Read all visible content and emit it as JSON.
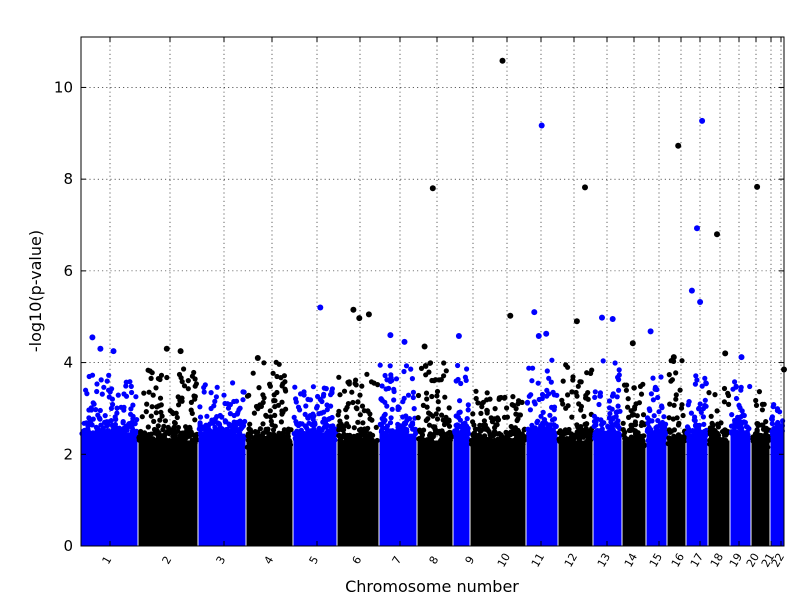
{
  "chart_data": {
    "type": "scatter",
    "title": "",
    "xlabel": "Chromosome number",
    "ylabel": "-log10(p-value)",
    "ylim": [
      0,
      11.1
    ],
    "yticks": [
      0,
      2,
      4,
      6,
      8,
      10
    ],
    "grid": true,
    "legend": "none",
    "colors": {
      "odd": "#0000ff",
      "even": "#000000",
      "background": "#ffffff"
    },
    "chromosomes": [
      {
        "label": "1",
        "color": "blue"
      },
      {
        "label": "2",
        "color": "black"
      },
      {
        "label": "3",
        "color": "blue"
      },
      {
        "label": "4",
        "color": "black"
      },
      {
        "label": "5",
        "color": "blue"
      },
      {
        "label": "6",
        "color": "black"
      },
      {
        "label": "7",
        "color": "blue"
      },
      {
        "label": "8",
        "color": "black"
      },
      {
        "label": "9",
        "color": "blue"
      },
      {
        "label": "10",
        "color": "black"
      },
      {
        "label": "11",
        "color": "blue"
      },
      {
        "label": "12",
        "color": "black"
      },
      {
        "label": "13",
        "color": "blue"
      },
      {
        "label": "14",
        "color": "black"
      },
      {
        "label": "15",
        "color": "blue"
      },
      {
        "label": "16",
        "color": "black"
      },
      {
        "label": "17",
        "color": "blue"
      },
      {
        "label": "18",
        "color": "black"
      },
      {
        "label": "19",
        "color": "blue"
      },
      {
        "label": "20",
        "color": "black"
      },
      {
        "label": "21",
        "color": "blue"
      },
      {
        "label": "22",
        "color": "black"
      }
    ],
    "typical_max_by_chromosome": [
      3.8,
      3.9,
      3.6,
      4.1,
      3.5,
      3.8,
      4.0,
      4.1,
      4.0,
      3.4,
      4.1,
      4.0,
      4.1,
      3.6,
      3.7,
      4.1,
      3.9,
      3.5,
      3.7,
      3.4,
      3.1,
      3.9
    ],
    "top_hits": [
      {
        "chr": "1",
        "y": 4.55
      },
      {
        "chr": "1",
        "y": 4.25
      },
      {
        "chr": "1",
        "y": 4.3
      },
      {
        "chr": "2",
        "y": 4.25
      },
      {
        "chr": "2",
        "y": 4.3
      },
      {
        "chr": "4",
        "y": 4.1
      },
      {
        "chr": "5",
        "y": 5.2
      },
      {
        "chr": "6",
        "y": 5.15
      },
      {
        "chr": "6",
        "y": 5.05
      },
      {
        "chr": "6",
        "y": 4.97
      },
      {
        "chr": "7",
        "y": 4.6
      },
      {
        "chr": "7",
        "y": 4.45
      },
      {
        "chr": "8",
        "y": 7.8
      },
      {
        "chr": "8",
        "y": 4.35
      },
      {
        "chr": "10",
        "y": 10.58
      },
      {
        "chr": "9",
        "y": 4.58
      },
      {
        "chr": "10",
        "y": 5.02
      },
      {
        "chr": "11",
        "y": 9.17
      },
      {
        "chr": "11",
        "y": 5.1
      },
      {
        "chr": "11",
        "y": 4.63
      },
      {
        "chr": "11",
        "y": 4.58
      },
      {
        "chr": "12",
        "y": 7.82
      },
      {
        "chr": "12",
        "y": 4.9
      },
      {
        "chr": "13",
        "y": 4.98
      },
      {
        "chr": "13",
        "y": 4.95
      },
      {
        "chr": "14",
        "y": 4.42
      },
      {
        "chr": "15",
        "y": 4.68
      },
      {
        "chr": "16",
        "y": 8.73
      },
      {
        "chr": "16",
        "y": 4.12
      },
      {
        "chr": "17",
        "y": 9.27
      },
      {
        "chr": "17",
        "y": 6.93
      },
      {
        "chr": "17",
        "y": 5.57
      },
      {
        "chr": "17",
        "y": 5.32
      },
      {
        "chr": "18",
        "y": 6.8
      },
      {
        "chr": "18",
        "y": 4.2
      },
      {
        "chr": "19",
        "y": 4.12
      },
      {
        "chr": "20",
        "y": 7.83
      },
      {
        "chr": "22",
        "y": 3.85
      }
    ]
  }
}
